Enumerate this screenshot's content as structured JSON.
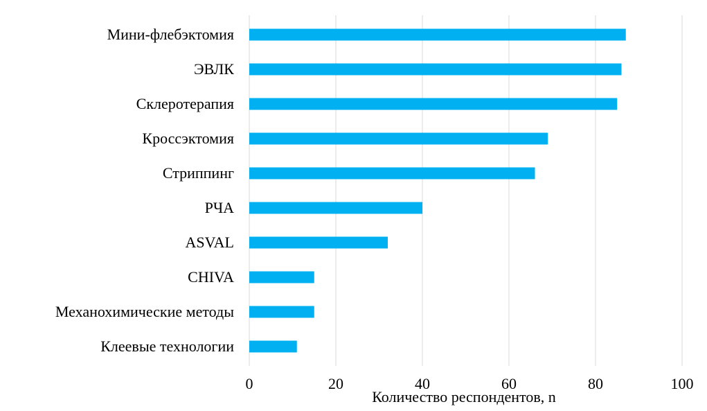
{
  "chart_data": {
    "type": "bar",
    "orientation": "horizontal",
    "categories": [
      "Мини-флебэктомия",
      "ЭВЛК",
      "Склеротерапия",
      "Кроссэктомия",
      "Стриппинг",
      "РЧА",
      "ASVAL",
      "CHIVA",
      "Механохимические методы",
      "Клеевые технологии"
    ],
    "values": [
      87,
      86,
      85,
      69,
      66,
      40,
      32,
      15,
      15,
      11
    ],
    "xlabel": "Количество респондентов,  n",
    "ylabel": "",
    "xlim": [
      0,
      100
    ],
    "xticks": [
      "0",
      "20",
      "40",
      "60",
      "80",
      "100"
    ],
    "grid": "vertical",
    "legend": "none",
    "colors": {
      "bar": "#00B0F0",
      "grid": "#D9D9D9",
      "text": "#000000"
    }
  }
}
